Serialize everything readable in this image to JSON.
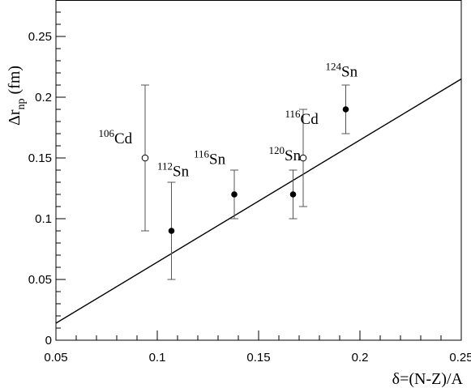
{
  "chart_data": {
    "type": "scatter",
    "xlabel": "δ=(N-Z)/A",
    "ylabel": {
      "main": "Δr",
      "sub": "np",
      "unit": " (fm)"
    },
    "xlim": [
      0.05,
      0.25
    ],
    "ylim": [
      0,
      0.28
    ],
    "x_ticks": [
      0.05,
      0.1,
      0.15,
      0.2,
      0.25
    ],
    "x_tick_labels": [
      "0.05",
      "0.1",
      "0.15",
      "0.2",
      "0.25"
    ],
    "y_ticks": [
      0,
      0.05,
      0.1,
      0.15,
      0.2,
      0.25
    ],
    "y_tick_labels": [
      "0",
      "0.05",
      "0.1",
      "0.15",
      "0.2",
      "0.25"
    ],
    "grid": false,
    "points": [
      {
        "mass": "106",
        "element": "Cd",
        "x": 0.094,
        "y": 0.15,
        "err": 0.06,
        "marker": "open",
        "label_x": 0.071,
        "label_y": 0.162
      },
      {
        "mass": "112",
        "element": "Sn",
        "x": 0.107,
        "y": 0.09,
        "err": 0.04,
        "marker": "filled",
        "label_x": 0.1,
        "label_y": 0.135
      },
      {
        "mass": "116",
        "element": "Sn",
        "x": 0.138,
        "y": 0.12,
        "err": 0.02,
        "marker": "filled",
        "label_x": 0.118,
        "label_y": 0.145
      },
      {
        "mass": "120",
        "element": "Sn",
        "x": 0.167,
        "y": 0.12,
        "err": 0.02,
        "marker": "filled",
        "label_x": 0.155,
        "label_y": 0.148
      },
      {
        "mass": "116",
        "element": "Cd",
        "x": 0.172,
        "y": 0.15,
        "err": 0.04,
        "marker": "open",
        "label_x": 0.163,
        "label_y": 0.178
      },
      {
        "mass": "124",
        "element": "Sn",
        "x": 0.193,
        "y": 0.19,
        "err": 0.02,
        "marker": "filled",
        "label_x": 0.183,
        "label_y": 0.217
      }
    ],
    "fit_line": {
      "x": [
        0.05,
        0.25
      ],
      "y": [
        0.014,
        0.215
      ]
    }
  }
}
